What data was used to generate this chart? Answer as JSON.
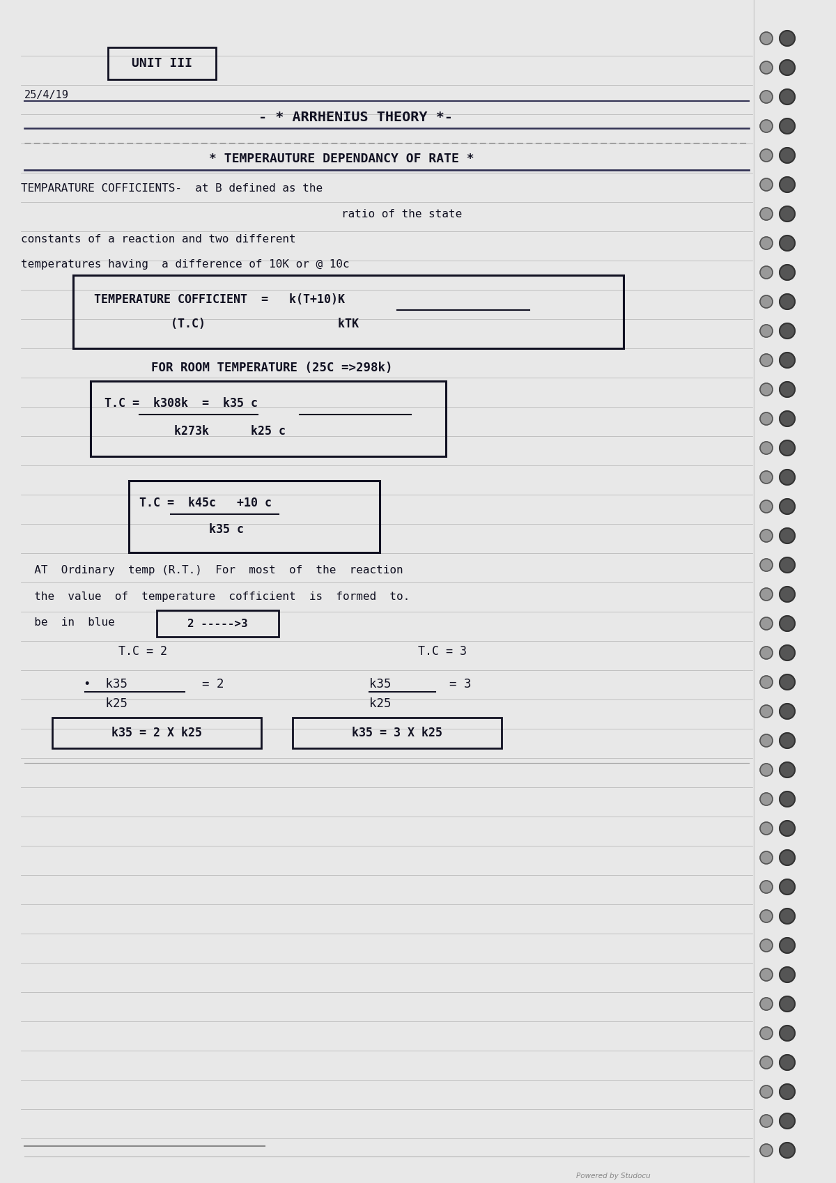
{
  "bg_color": "#e8e8e8",
  "page_color": "#f5f5f0",
  "line_color": "#b0b0b0",
  "text_color": "#111122",
  "title_unit": "UNIT III",
  "date": "25/4/19",
  "heading1": "- * ARRHENIUS THEORY *-",
  "heading2": "* TEMPERAUTURE DEPENDANCY OF RATE *",
  "line1a": "TEMPARATURE COFFICIENTS-  at B defined as the",
  "line1b": "ratio of the state",
  "line2": "constants of a reaction and two different",
  "line3": "temperatures having  a difference of 10K or @ 10c",
  "box1a": "TEMPERATURE COFFICIENT  =   k(T+10)K",
  "box1b": "           (T.C)                   kTK",
  "line4": "FOR ROOM TEMPERATURE (25C =>298k)",
  "box2a": "T.C =  k308k  =  k35 c",
  "box2b": "          k273k      k25 c",
  "box3a": "T.C =  k45c   +10 c",
  "box3b": "          k35 c",
  "line5": "  AT  Ordinary  temp (R.T.)  For  most  of  the  reaction",
  "line6": "  the  value  of  temperature  cofficient  is  formed  to.",
  "line7": "  be  in  blue",
  "box_arrow": "2 ----->3",
  "line8a": "          T.C = 2",
  "line8b": "T.C = 3",
  "frac_l_num": "  k35",
  "frac_l_den": "  k25",
  "frac_l_eq": "= 2",
  "frac_r_num": "  k35",
  "frac_r_den": "  k25",
  "frac_r_eq": "= 3",
  "box4": "  k35 = 2 X k25  ",
  "box5": "  k35 = 3 X k25  ",
  "footer": "Powered by Studocu"
}
